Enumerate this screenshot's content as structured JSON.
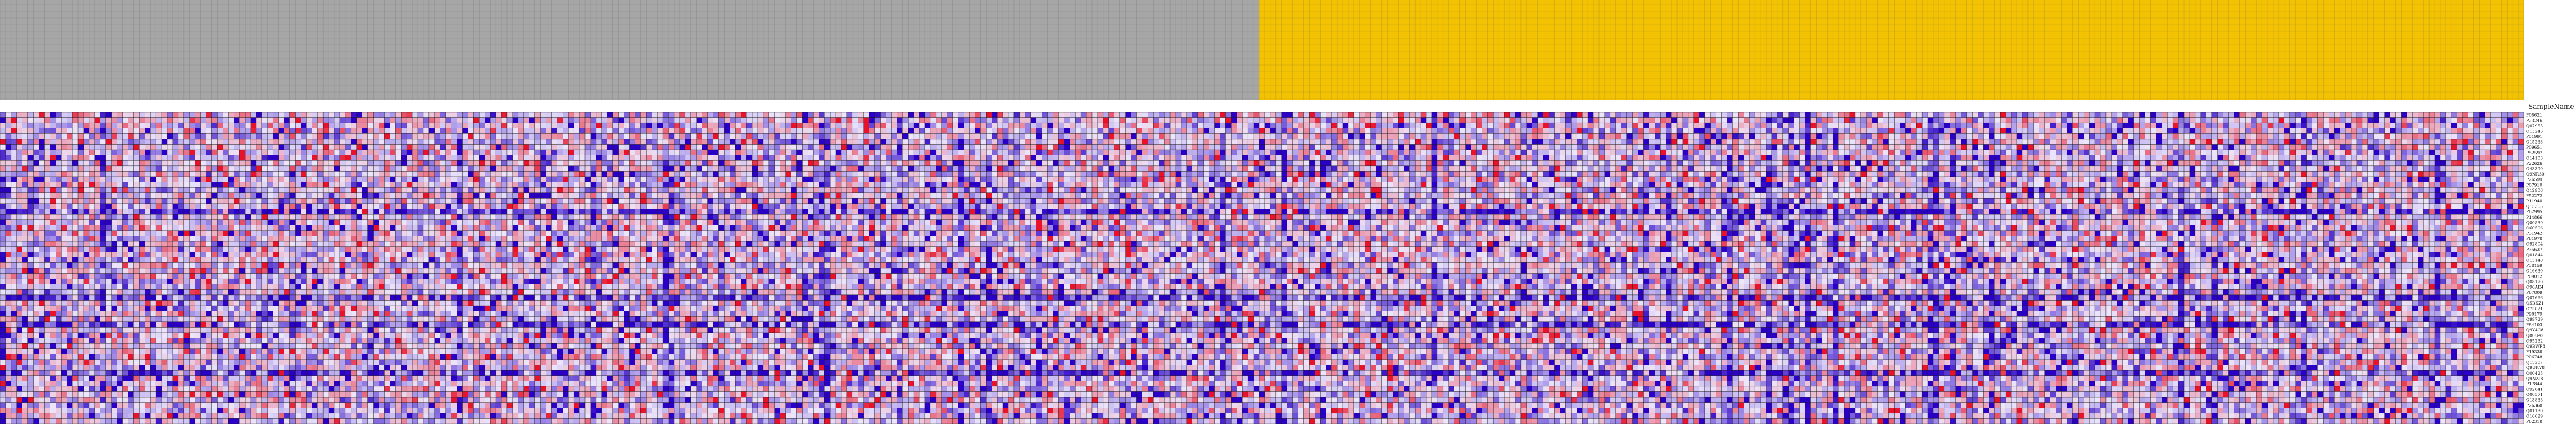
{
  "chart_data": {
    "type": "heatmap",
    "title": "",
    "row_header_label": "SampleName",
    "n_columns": 453,
    "n_rows": 58,
    "sample_groups": [
      {
        "columns": [
          0,
          225
        ],
        "color": "#a6a6a6"
      },
      {
        "columns": [
          226,
          452
        ],
        "color": "#f2c203"
      }
    ],
    "color_scale": {
      "low": "#2a00c6",
      "mid": "#ece6fb",
      "high": "#e8132a",
      "domain": [
        -2,
        0,
        2
      ]
    },
    "grid": true,
    "row_labels": [
      "P08621",
      "P23246",
      "Q07955",
      "Q13243",
      "P51991",
      "Q15233",
      "P09651",
      "P52597",
      "Q14103",
      "P22626",
      "O43390",
      "Q9NR30",
      "P26599",
      "P07910",
      "Q12906",
      "P52272",
      "P11940",
      "Q15365",
      "P62995",
      "P14866",
      "Q00839",
      "O60506",
      "P31942",
      "P61978",
      "Q92804",
      "P35637",
      "Q01844",
      "Q13148",
      "P38159",
      "Q16630",
      "P09012",
      "Q08170",
      "Q96AE4",
      "P67809",
      "Q07666",
      "Q5BKZ1",
      "O75821",
      "P98179",
      "Q99729",
      "P84103",
      "Q9Y4C8",
      "Q86U42",
      "O95232",
      "Q9BWF3",
      "P19338",
      "P06748",
      "Q15287",
      "Q9UKV8",
      "O00425",
      "Q9NZI8",
      "P17844",
      "Q92841",
      "O00571",
      "Q13838",
      "P26368",
      "Q01130",
      "Q16629",
      "P62318"
    ],
    "column_labels_note": "unreadable"
  }
}
